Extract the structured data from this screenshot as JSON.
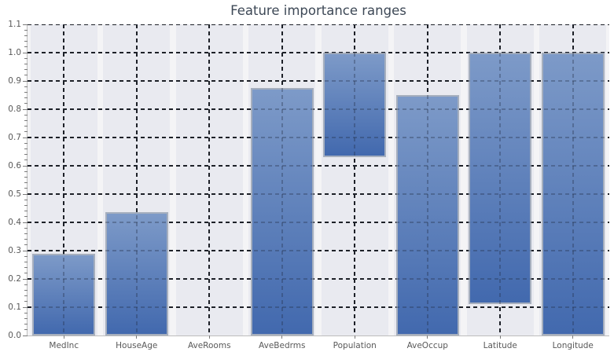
{
  "title": "Feature importance ranges",
  "colors": {
    "title": "#3d4856",
    "bar_gradient_top": "#7d9ac8",
    "bar_gradient_bottom": "#4269ae",
    "bar_border": "#a6afbe",
    "column_band": "#e9eaf0",
    "plot_background": "#f4f4f6",
    "gridline": "#1c1c1c",
    "tick_label": "#595959",
    "spine": "#bdbdbd"
  },
  "chart_data": {
    "type": "bar",
    "title": "Feature importance ranges",
    "categories": [
      "MedInc",
      "HouseAge",
      "AveRooms",
      "AveBedrms",
      "Population",
      "AveOccup",
      "Latitude",
      "Longitude"
    ],
    "ranges": [
      [
        0,
        0.29
      ],
      [
        0,
        0.435
      ],
      [
        0,
        0
      ],
      [
        0,
        0.875
      ],
      [
        0.63,
        1.0
      ],
      [
        0,
        0.85
      ],
      [
        0.11,
        1.0
      ],
      [
        0,
        1.0
      ]
    ],
    "series": [
      {
        "name": "range low",
        "values": [
          0,
          0,
          0,
          0,
          0.63,
          0,
          0.11,
          0
        ]
      },
      {
        "name": "range high",
        "values": [
          0.29,
          0.435,
          0,
          0.875,
          1.0,
          0.85,
          1.0,
          1.0
        ]
      }
    ],
    "xlabel": "",
    "ylabel": "",
    "ylim": [
      0,
      1.1
    ],
    "ytick_labels": [
      "0.0",
      "0.1",
      "0.2",
      "0.3",
      "0.4",
      "0.5",
      "0.6",
      "0.7",
      "0.8",
      "0.9",
      "1.0",
      "1.1"
    ],
    "ytick_minor_step": 0.02,
    "grid": "dashed black, horizontal and vertical",
    "legend_position": "none",
    "bar_style": "vertical gradient blue, light gray border, floating range bars"
  }
}
